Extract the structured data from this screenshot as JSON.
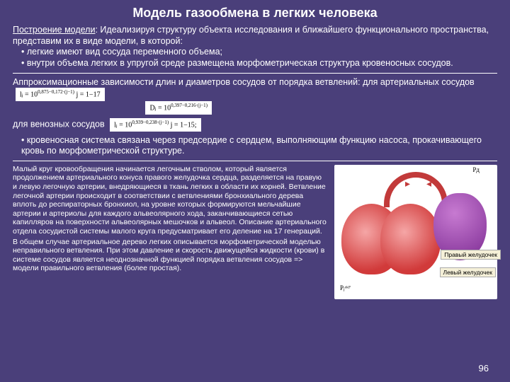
{
  "title": "Модель газообмена в легких человека",
  "intro_label": "Построение модели",
  "intro_text": ": Идеализируя структуру объекта исследования и ближайшего функционального пространства, представим их в виде модели, в которой:",
  "bullet1": "• легкие имеют вид сосуда переменного объема;",
  "bullet2": "• внутри объема легких в упругой среде размещена морфометрическая структура кровеносных сосудов.",
  "approx_text": "Аппроксимационные зависимости длин и диаметров сосудов от порядка ветвлений: для артериальных сосудов",
  "formula_a1": "lⱼ = 10",
  "formula_a1_exp": "0,875−0,172·(j−1)",
  "formula_a1_tail": "  j = 1−17",
  "formula_a2": "Dⱼ = 10",
  "formula_a2_exp": "0,397−0,216·(j−1)",
  "venous_label": "для венозных сосудов",
  "formula_v": "lⱼ = 10",
  "formula_v_exp": "0,939−0,238·(j−1)",
  "formula_v_tail": "  j = 1−15;",
  "bullet3": "• кровеносная система связана через предсердие с сердцем, выполняющим функцию насоса, прокачивающего кровь по морфометрической структуре.",
  "body_text": "Малый круг кровообращения начинается легочным стволом, который является продолжением артериального конуса правого желудочка сердца, разделяется на правую и левую легочную артерии, внедряющиеся в ткань легких в области их корней. Ветвление легочной артерии происходит в соответствии с ветвлениями бронхиального дерева вплоть до респираторных бронхиол, на уровне которых формируются мельчайшие артерии и артериолы для каждого альвеолярного хода, заканчивающиеся сетью капилляров на поверхности альвеолярных мешочков и альвеол. Описание артериального отдела сосудистой системы малого круга предусматривает его деление на 17 генераций.\nВ общем случае артериальное дерево легких описывается морфометрической моделью неправильного ветвления. При этом давление и скорость движущейся жидкости (крови) в системе сосудов является неоднозначной функцией порядка ветвления сосудов => модели правильного ветвления (более простая).",
  "fig_labels": {
    "pd": "Pд",
    "p_okr": "Pⱼᵒᵏᴾ",
    "right_v": "Правый желудочек",
    "left_v": "Левый желудочек"
  },
  "page": "96"
}
